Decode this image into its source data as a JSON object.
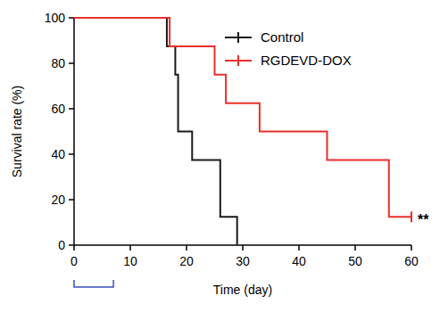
{
  "chart_data": {
    "type": "line",
    "line_style": "step",
    "x_label": "Time (day)",
    "y_label": "Survival rate (%)",
    "xlim": [
      0,
      60
    ],
    "xticks": [
      0,
      10,
      20,
      30,
      40,
      50,
      60
    ],
    "ylim": [
      0,
      100
    ],
    "yticks": [
      0,
      20,
      40,
      60,
      80,
      100
    ],
    "legend": "top-right",
    "annotation": "**",
    "bracket": [
      0,
      7
    ],
    "bracket_color": "#3a4fc4",
    "series": [
      {
        "name": "Control",
        "color": "#1a1a1a",
        "marker": "none",
        "x": [
          0,
          16.5,
          18,
          18.5,
          21,
          26,
          29
        ],
        "values": [
          100,
          87.5,
          75,
          50,
          37.5,
          12.5,
          0
        ]
      },
      {
        "name": "RGDEVD-DOX",
        "color": "#e8302a",
        "marker": "censor",
        "x": [
          0,
          17,
          25,
          27,
          33,
          45,
          56,
          60
        ],
        "values": [
          100,
          87.5,
          75,
          62.5,
          50,
          37.5,
          12.5,
          12.5
        ]
      }
    ]
  }
}
